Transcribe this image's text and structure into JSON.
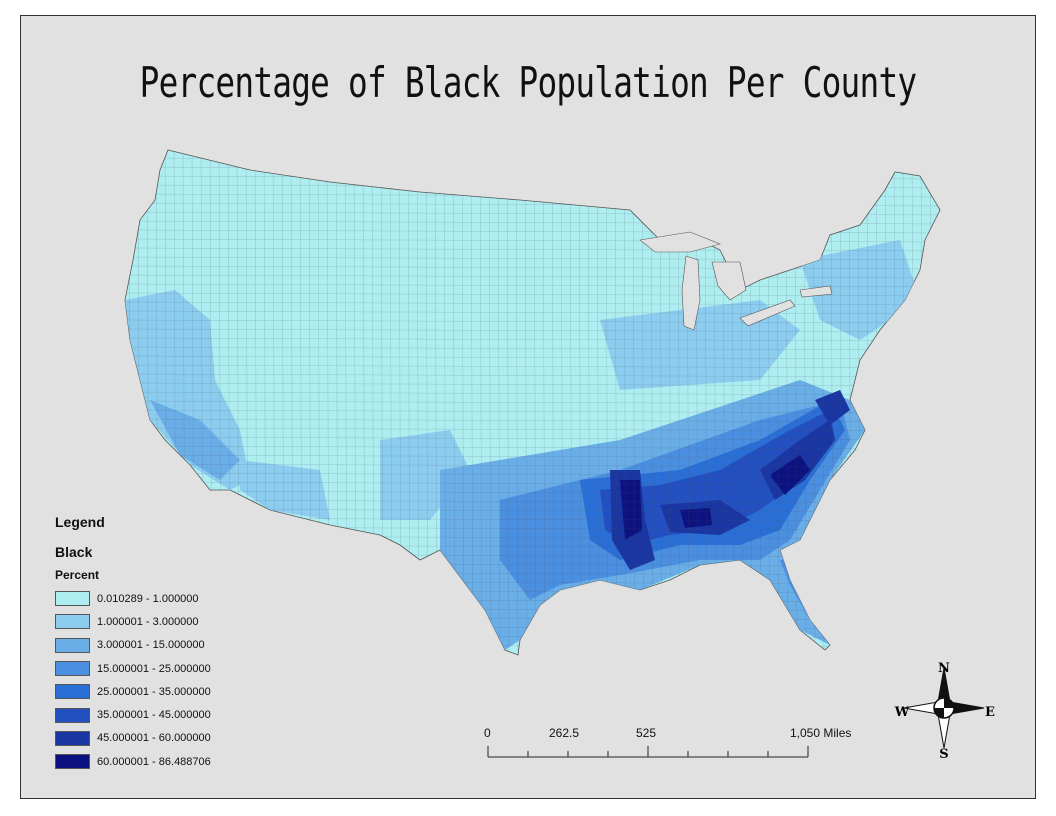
{
  "title": "Percentage of Black Population Per County",
  "legend": {
    "title": "Legend",
    "layer": "Black",
    "field": "Percent",
    "classes": [
      {
        "label": "0.010289 - 1.000000",
        "color": "#aeeef0"
      },
      {
        "label": "1.000001 - 3.000000",
        "color": "#8ccdef"
      },
      {
        "label": "3.000001 - 15.000000",
        "color": "#6aaee8"
      },
      {
        "label": "15.000001 - 25.000000",
        "color": "#4b8fe0"
      },
      {
        "label": "25.000001 - 35.000000",
        "color": "#2a6fd6"
      },
      {
        "label": "35.000001 - 45.000000",
        "color": "#2350c0"
      },
      {
        "label": "45.000001 - 60.000000",
        "color": "#1a36a2"
      },
      {
        "label": "60.000001 - 86.488706",
        "color": "#0c1280"
      }
    ]
  },
  "scale_bar": {
    "labels": [
      "0",
      "262.5",
      "525",
      "1,050 Miles"
    ]
  },
  "north_arrow": {
    "n": "N",
    "s": "S",
    "e": "E",
    "w": "W"
  }
}
